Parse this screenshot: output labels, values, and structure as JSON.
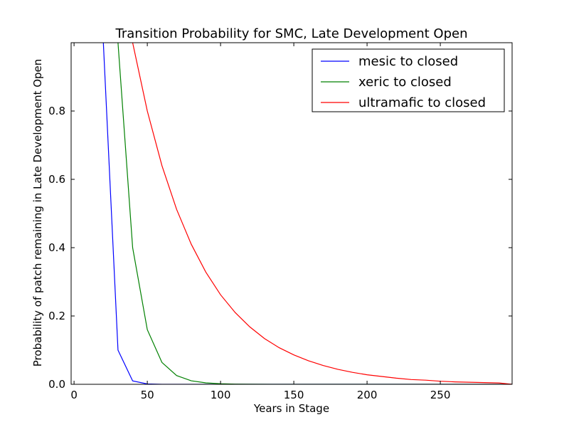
{
  "chart_data": {
    "type": "line",
    "title": "Transition Probability for SMC, Late Development Open",
    "xlabel": "Years in Stage",
    "ylabel": "Probability of patch remaining in Late Development Open",
    "xlim": [
      -2,
      299
    ],
    "ylim": [
      0,
      1
    ],
    "x_ticks": [
      0,
      50,
      100,
      150,
      200,
      250
    ],
    "y_ticks": [
      0.0,
      0.2,
      0.4,
      0.6,
      0.8
    ],
    "grid": false,
    "legend_position": "top-right",
    "series": [
      {
        "name": "mesic to closed",
        "color": "#0000ff",
        "x": [
          20,
          30,
          40,
          50,
          60,
          70,
          80,
          90,
          100,
          120,
          150,
          200,
          250,
          299
        ],
        "y": [
          1.0,
          0.1,
          0.01,
          0.001,
          0.0,
          0.0,
          0.0,
          0.0,
          0.0,
          0.0,
          0.0,
          0.0,
          0.0,
          0.0
        ]
      },
      {
        "name": "xeric to closed",
        "color": "#008000",
        "x": [
          30,
          40,
          50,
          60,
          70,
          80,
          90,
          100,
          110,
          120,
          150,
          200,
          250,
          299
        ],
        "y": [
          1.0,
          0.4,
          0.16,
          0.064,
          0.0256,
          0.0102,
          0.0041,
          0.0016,
          0.0007,
          0.0003,
          0.0,
          0.0,
          0.0,
          0.0
        ]
      },
      {
        "name": "ultramafic to closed",
        "color": "#ff0000",
        "x": [
          40,
          50,
          60,
          70,
          80,
          90,
          100,
          110,
          120,
          130,
          140,
          150,
          160,
          170,
          180,
          190,
          200,
          210,
          220,
          230,
          240,
          250,
          260,
          270,
          280,
          290,
          299
        ],
        "y": [
          1.0,
          0.8,
          0.64,
          0.512,
          0.41,
          0.328,
          0.262,
          0.21,
          0.168,
          0.134,
          0.107,
          0.086,
          0.069,
          0.055,
          0.044,
          0.035,
          0.028,
          0.023,
          0.018,
          0.014,
          0.012,
          0.009,
          0.007,
          0.006,
          0.005,
          0.004,
          0.0
        ]
      }
    ]
  }
}
